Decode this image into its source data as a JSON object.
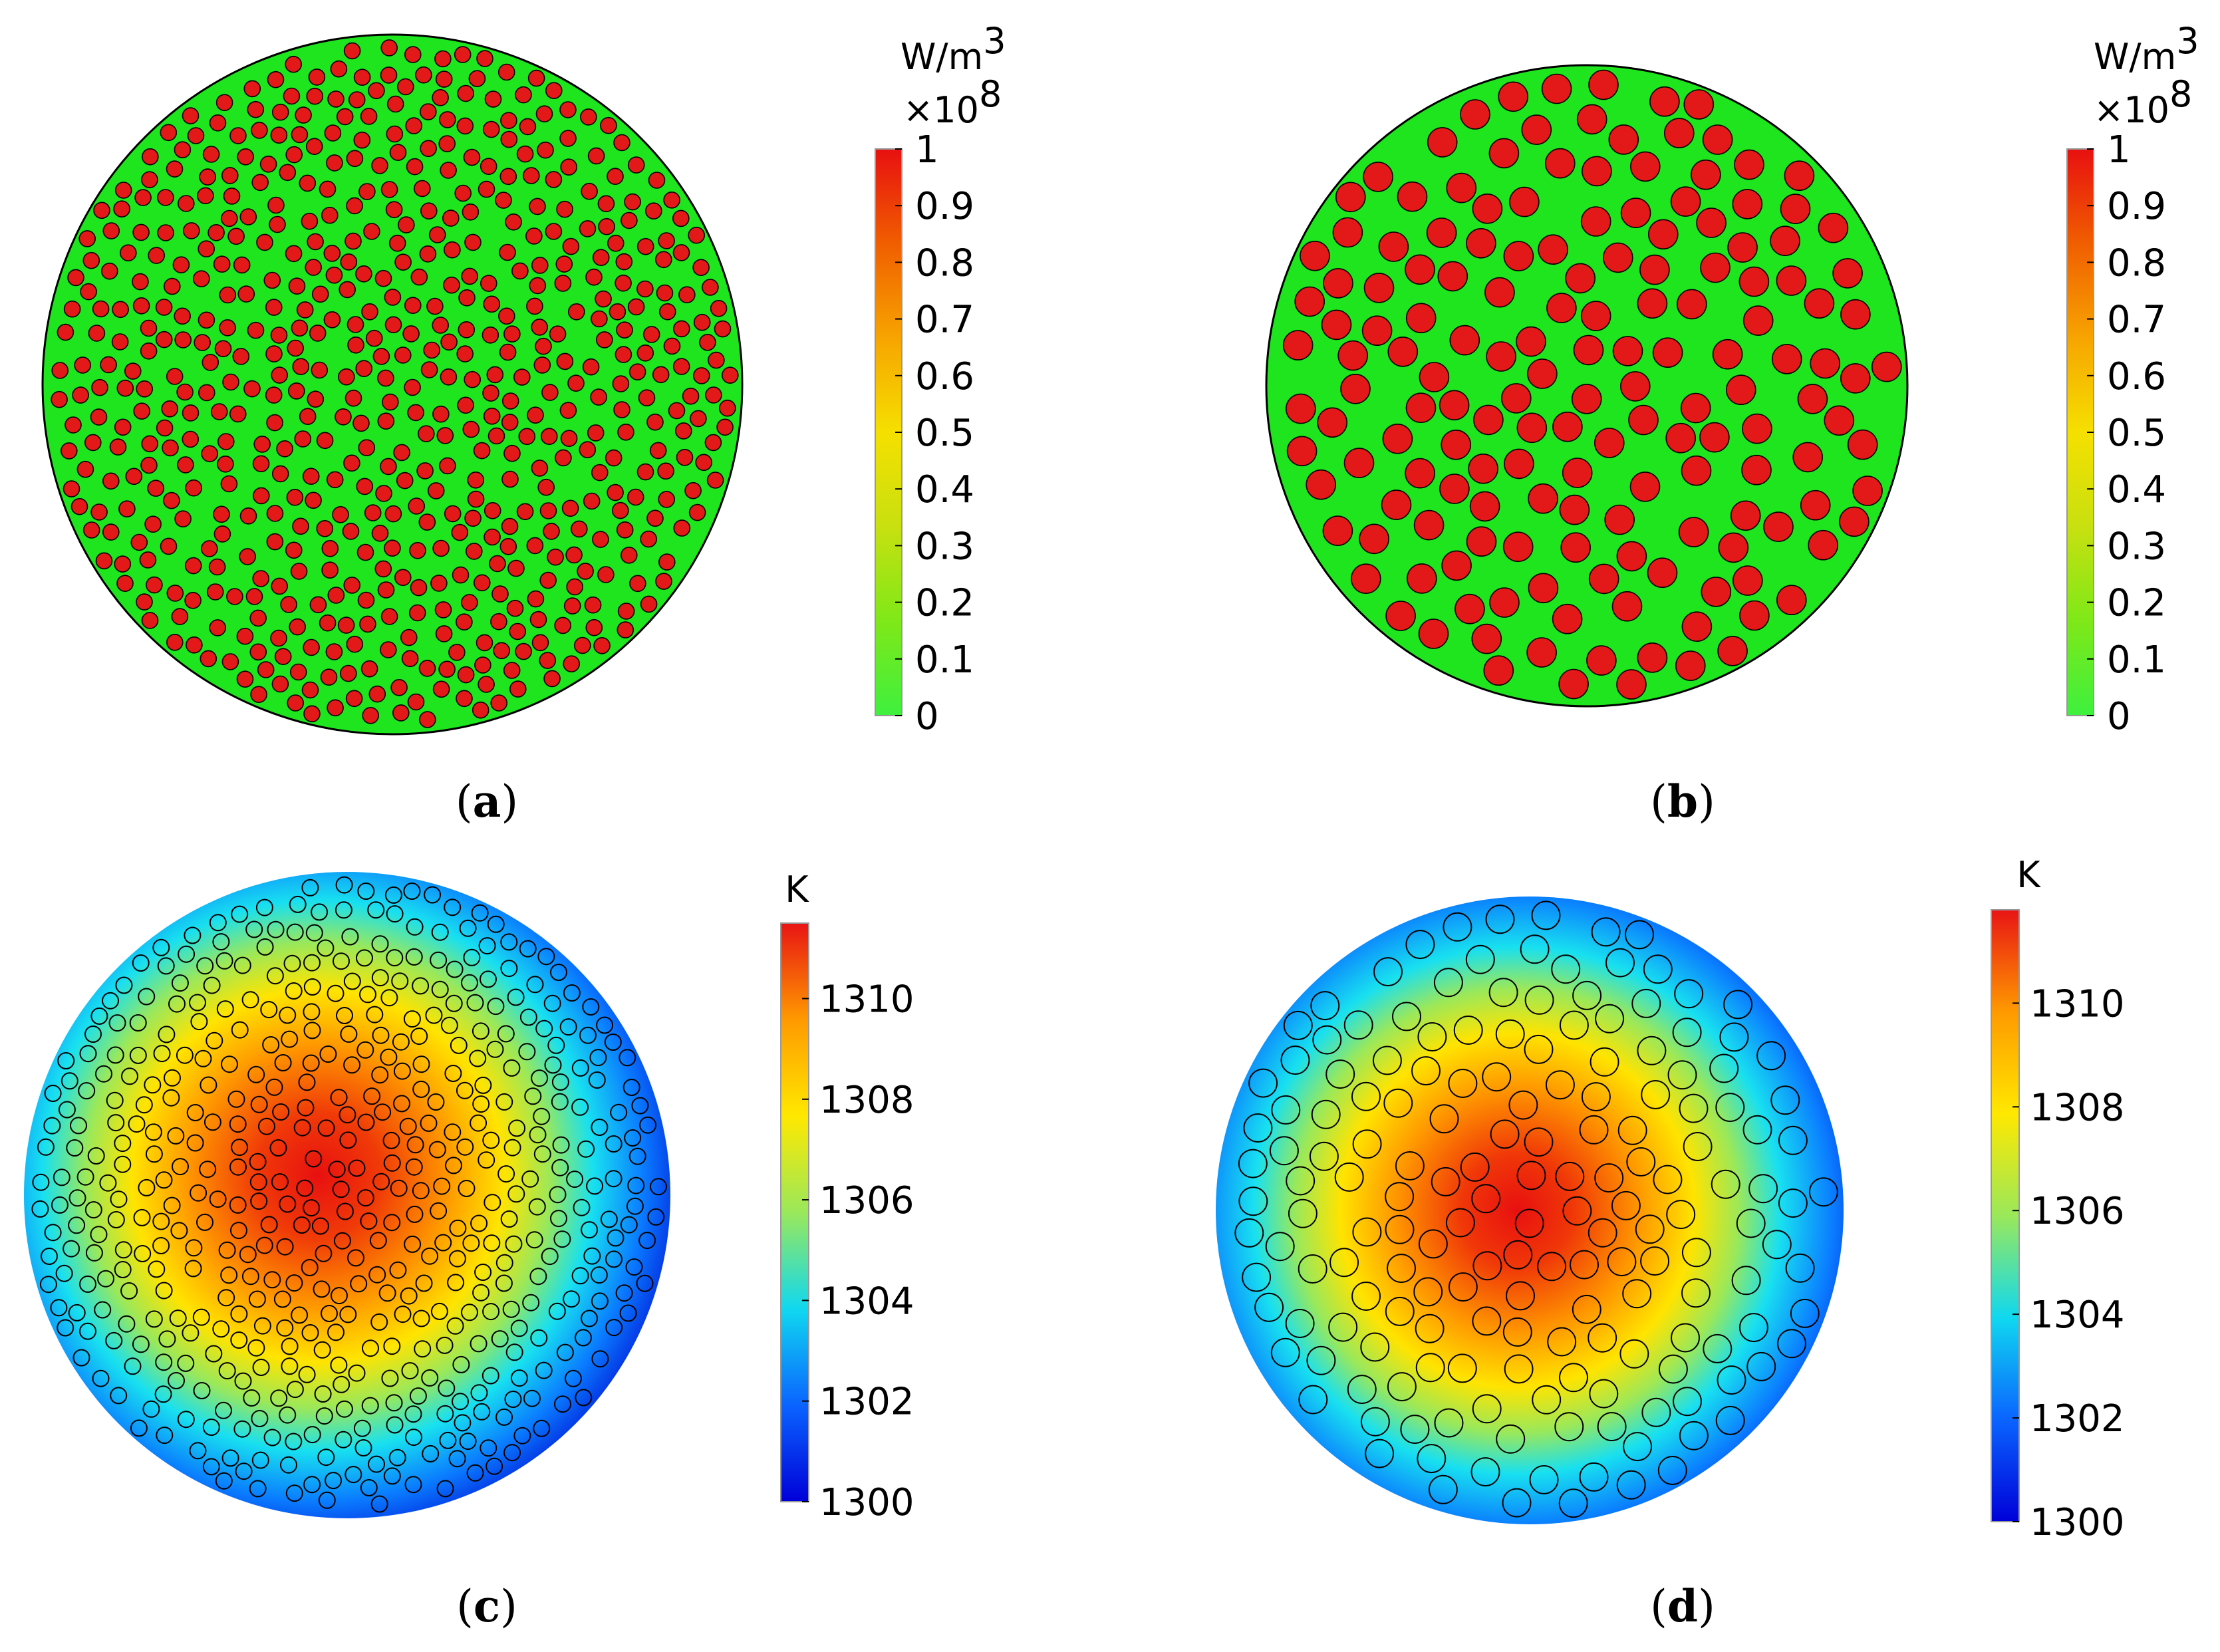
{
  "panels": [
    {
      "id": "a",
      "caption_open": "(",
      "caption_letter": "a",
      "caption_close": ")",
      "field": "power_density",
      "particle_style": "filled",
      "particle_count_shown": "many",
      "colors": {
        "matrix": "#1ee51e",
        "particle": "#e31818",
        "outline": "#000000"
      },
      "colorbar": {
        "unit_base": "W/m",
        "unit_sup": "3",
        "multiplier_base": "×10",
        "multiplier_sup": "8",
        "range": [
          0,
          1
        ],
        "ticks": [
          "1",
          "0.9",
          "0.8",
          "0.7",
          "0.6",
          "0.5",
          "0.4",
          "0.3",
          "0.2",
          "0.1",
          "0"
        ],
        "gradient": [
          "#3ef03e",
          "#7fe818",
          "#c8e010",
          "#f5e000",
          "#f7a400",
          "#f05e00",
          "#e81010"
        ]
      }
    },
    {
      "id": "b",
      "caption_open": "(",
      "caption_letter": "b",
      "caption_close": ")",
      "field": "power_density",
      "particle_style": "filled",
      "particle_count_shown": "few",
      "colors": {
        "matrix": "#1ee51e",
        "particle": "#e31818",
        "outline": "#000000"
      },
      "colorbar": {
        "unit_base": "W/m",
        "unit_sup": "3",
        "multiplier_base": "×10",
        "multiplier_sup": "8",
        "range": [
          0,
          1
        ],
        "ticks": [
          "1",
          "0.9",
          "0.8",
          "0.7",
          "0.6",
          "0.5",
          "0.4",
          "0.3",
          "0.2",
          "0.1",
          "0"
        ],
        "gradient": [
          "#3ef03e",
          "#7fe818",
          "#c8e010",
          "#f5e000",
          "#f7a400",
          "#f05e00",
          "#e81010"
        ]
      }
    },
    {
      "id": "c",
      "caption_open": "(",
      "caption_letter": "c",
      "caption_close": ")",
      "field": "temperature",
      "particle_style": "outline",
      "particle_count_shown": "many",
      "colors": {
        "outline": "#000000"
      },
      "colorbar": {
        "unit_base": "K",
        "range": [
          1300,
          1311.5
        ],
        "ticks": [
          "1310",
          "1308",
          "1306",
          "1304",
          "1302",
          "1300"
        ],
        "gradient": [
          "#0000d8",
          "#0a64ff",
          "#10d8f0",
          "#9ae85a",
          "#ffe800",
          "#ff9a00",
          "#e81414"
        ]
      }
    },
    {
      "id": "d",
      "caption_open": "(",
      "caption_letter": "d",
      "caption_close": ")",
      "field": "temperature",
      "particle_style": "outline",
      "particle_count_shown": "few",
      "colors": {
        "outline": "#000000"
      },
      "colorbar": {
        "unit_base": "K",
        "range": [
          1300,
          1311.8
        ],
        "ticks": [
          "1310",
          "1308",
          "1306",
          "1304",
          "1302",
          "1300"
        ],
        "gradient": [
          "#0000d8",
          "#0a64ff",
          "#10d8f0",
          "#9ae85a",
          "#ffe800",
          "#ff9a00",
          "#e81414"
        ]
      }
    }
  ]
}
